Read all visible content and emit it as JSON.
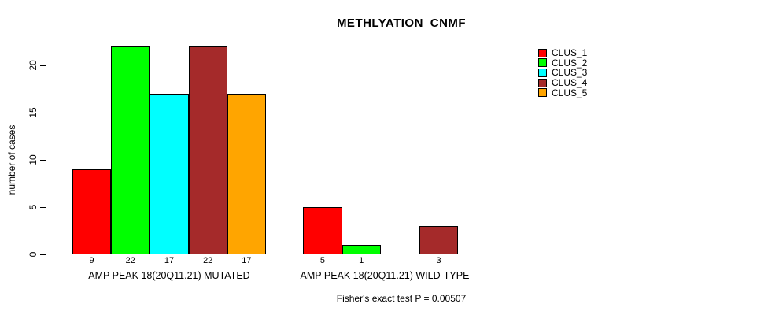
{
  "chart_data": {
    "type": "bar",
    "title": "METHLYATION_CNMF",
    "ylabel": "number of cases",
    "ylim": [
      0,
      22
    ],
    "yticks": [
      0,
      5,
      10,
      15,
      20
    ],
    "grid": false,
    "background": "#ffffff",
    "axis_color": "#000000",
    "legend": {
      "position": "right",
      "entries": [
        {
          "label": "CLUS_1",
          "color": "#ff0000"
        },
        {
          "label": "CLUS_2",
          "color": "#00ff00"
        },
        {
          "label": "CLUS_3",
          "color": "#00ffff"
        },
        {
          "label": "CLUS_4",
          "color": "#a52a2a"
        },
        {
          "label": "CLUS_5",
          "color": "#ffa500"
        }
      ]
    },
    "groups": [
      {
        "label": "AMP PEAK 18(20Q11.21) MUTATED",
        "values": [
          9,
          22,
          17,
          22,
          17
        ],
        "bar_labels": [
          "9",
          "22",
          "17",
          "22",
          "17"
        ]
      },
      {
        "label": "AMP PEAK 18(20Q11.21) WILD-TYPE",
        "values": [
          5,
          1,
          0,
          3,
          0
        ],
        "bar_labels": [
          "5",
          "1",
          "",
          "3",
          ""
        ]
      }
    ],
    "annotation": "Fisher's exact test P = 0.00507"
  }
}
